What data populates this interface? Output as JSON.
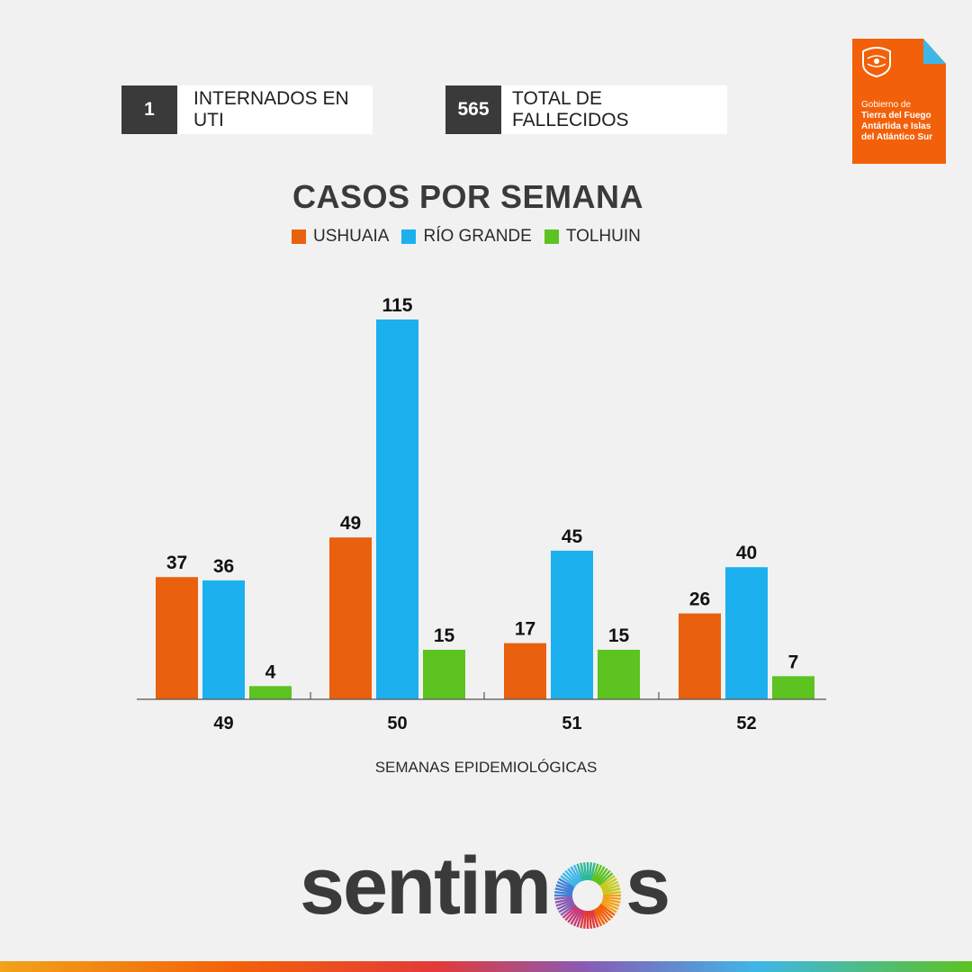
{
  "stats": [
    {
      "value": "1",
      "label": "INTERNADOS EN UTI"
    },
    {
      "value": "565",
      "label": "TOTAL DE FALLECIDOS"
    }
  ],
  "gov": {
    "line1": "Gobierno de",
    "line2": "Tierra del Fuego",
    "line3": "Antártida e Islas",
    "line4": "del Atlántico Sur"
  },
  "colors": {
    "ushuaia": "#e9600f",
    "rio_grande": "#1db0ee",
    "tolhuin": "#5cc320",
    "dark": "#3a3a3a",
    "brand_orange": "#f2600a"
  },
  "brand": {
    "prefix": "sentim",
    "suffix": "s"
  },
  "chart_data": {
    "type": "bar",
    "title": "CASOS POR SEMANA",
    "xlabel": "SEMANAS EPIDEMIOLÓGICAS",
    "ylabel": "",
    "categories": [
      "49",
      "50",
      "51",
      "52"
    ],
    "series": [
      {
        "name": "USHUAIA",
        "values": [
          37,
          49,
          17,
          26
        ]
      },
      {
        "name": "RÍO GRANDE",
        "values": [
          36,
          115,
          45,
          40
        ]
      },
      {
        "name": "TOLHUIN",
        "values": [
          4,
          15,
          15,
          7
        ]
      }
    ],
    "ylim": [
      0,
      115
    ],
    "grid": false,
    "legend": "top"
  }
}
